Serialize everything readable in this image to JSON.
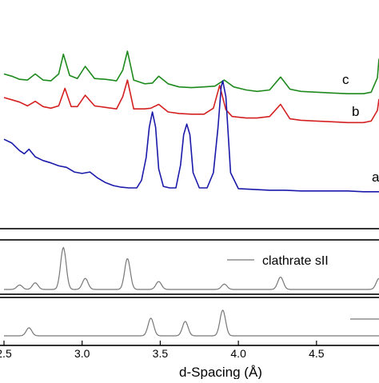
{
  "chart_data": [
    {
      "type": "line",
      "panel": "experimental",
      "xlabel": "d-Spacing (Å)",
      "xlim": [
        2.5,
        4.9
      ],
      "ylabel": "",
      "grid": false,
      "series": [
        {
          "name": "c",
          "color": "#1e8a1e",
          "x": [
            2.5,
            2.55,
            2.6,
            2.65,
            2.7,
            2.75,
            2.8,
            2.85,
            2.88,
            2.92,
            2.97,
            3.02,
            3.08,
            3.15,
            3.22,
            3.26,
            3.29,
            3.33,
            3.4,
            3.45,
            3.49,
            3.55,
            3.62,
            3.7,
            3.78,
            3.85,
            3.91,
            3.97,
            4.05,
            4.12,
            4.2,
            4.27,
            4.33,
            4.4,
            4.5,
            4.6,
            4.7,
            4.8,
            4.85,
            4.89,
            4.9
          ],
          "y": [
            0.5,
            0.47,
            0.43,
            0.42,
            0.5,
            0.42,
            0.41,
            0.5,
            0.76,
            0.48,
            0.44,
            0.6,
            0.44,
            0.43,
            0.41,
            0.55,
            0.8,
            0.42,
            0.37,
            0.38,
            0.47,
            0.37,
            0.33,
            0.32,
            0.33,
            0.34,
            0.42,
            0.33,
            0.29,
            0.27,
            0.29,
            0.46,
            0.3,
            0.27,
            0.26,
            0.25,
            0.24,
            0.24,
            0.26,
            0.45,
            0.7
          ]
        },
        {
          "name": "b",
          "color": "#d42020",
          "x": [
            2.5,
            2.55,
            2.6,
            2.65,
            2.7,
            2.75,
            2.8,
            2.85,
            2.89,
            2.93,
            2.97,
            3.02,
            3.08,
            3.15,
            3.22,
            3.26,
            3.29,
            3.33,
            3.4,
            3.44,
            3.49,
            3.55,
            3.62,
            3.7,
            3.78,
            3.84,
            3.88,
            3.92,
            3.96,
            4.05,
            4.12,
            4.2,
            4.27,
            4.33,
            4.4,
            4.5,
            4.6,
            4.7,
            4.8,
            4.85,
            4.89,
            4.9
          ],
          "y": [
            0.19,
            0.16,
            0.13,
            0.08,
            0.14,
            0.07,
            0.05,
            0.08,
            0.31,
            0.07,
            0.07,
            0.22,
            0.08,
            0.06,
            0.04,
            0.2,
            0.42,
            0.04,
            0.04,
            0.05,
            0.1,
            0.0,
            -0.02,
            -0.03,
            -0.03,
            0.05,
            0.35,
            0.03,
            -0.06,
            -0.08,
            -0.08,
            -0.06,
            0.1,
            -0.09,
            -0.11,
            -0.12,
            -0.13,
            -0.14,
            -0.14,
            -0.12,
            0.02,
            0.17
          ]
        },
        {
          "name": "a",
          "color": "#1a1aaa",
          "x": [
            2.5,
            2.55,
            2.6,
            2.63,
            2.66,
            2.7,
            2.75,
            2.8,
            2.85,
            2.9,
            2.95,
            3.0,
            3.05,
            3.1,
            3.15,
            3.2,
            3.25,
            3.3,
            3.35,
            3.38,
            3.41,
            3.43,
            3.45,
            3.47,
            3.49,
            3.52,
            3.56,
            3.6,
            3.63,
            3.65,
            3.67,
            3.69,
            3.71,
            3.75,
            3.8,
            3.84,
            3.87,
            3.89,
            3.9,
            3.92,
            3.95,
            4.0,
            4.1,
            4.2,
            4.3,
            4.4,
            4.5,
            4.6,
            4.7,
            4.8,
            4.9
          ],
          "y": [
            -0.36,
            -0.41,
            -0.51,
            -0.55,
            -0.49,
            -0.59,
            -0.64,
            -0.67,
            -0.71,
            -0.73,
            -0.79,
            -0.81,
            -0.79,
            -0.87,
            -0.93,
            -0.97,
            -0.99,
            -1.0,
            -1.0,
            -0.9,
            -0.6,
            -0.2,
            0.0,
            -0.2,
            -0.75,
            -0.98,
            -1.0,
            -1.0,
            -0.7,
            -0.3,
            -0.16,
            -0.3,
            -0.8,
            -1.0,
            -1.0,
            -0.8,
            -0.2,
            0.33,
            0.41,
            0.2,
            -0.8,
            -1.01,
            -1.02,
            -1.03,
            -1.03,
            -1.04,
            -1.04,
            -1.04,
            -1.04,
            -1.05,
            -1.05
          ]
        }
      ],
      "annotations": [
        "c",
        "b",
        "a"
      ]
    },
    {
      "type": "line",
      "panel": "reference-top",
      "xlim": [
        2.5,
        4.9
      ],
      "ylim": [
        0,
        1
      ],
      "series": [
        {
          "name": "clathrate sII",
          "color": "#777777",
          "peaks": [
            [
              2.6,
              0.1
            ],
            [
              2.7,
              0.15
            ],
            [
              2.88,
              0.95
            ],
            [
              3.02,
              0.25
            ],
            [
              3.29,
              0.7
            ],
            [
              3.49,
              0.18
            ],
            [
              3.91,
              0.12
            ],
            [
              4.27,
              0.28
            ],
            [
              4.9,
              0.25
            ]
          ]
        }
      ]
    },
    {
      "type": "line",
      "panel": "reference-bottom",
      "xlim": [
        2.5,
        4.9
      ],
      "ylim": [
        0,
        1
      ],
      "series": [
        {
          "color": "#777777",
          "peaks": [
            [
              2.66,
              0.25
            ],
            [
              3.44,
              0.55
            ],
            [
              3.66,
              0.45
            ],
            [
              3.9,
              0.8
            ]
          ]
        }
      ]
    }
  ],
  "axis": {
    "xlabel": "d-Spacing (Å)",
    "ticks": [
      "2.5",
      "3.0",
      "3.5",
      "4.0",
      "4.5"
    ],
    "tick_values": [
      2.5,
      3.0,
      3.5,
      4.0,
      4.5
    ]
  },
  "legend": {
    "label": "clathrate sII"
  },
  "colors": {
    "frame": "#000000",
    "reference": "#777777"
  }
}
